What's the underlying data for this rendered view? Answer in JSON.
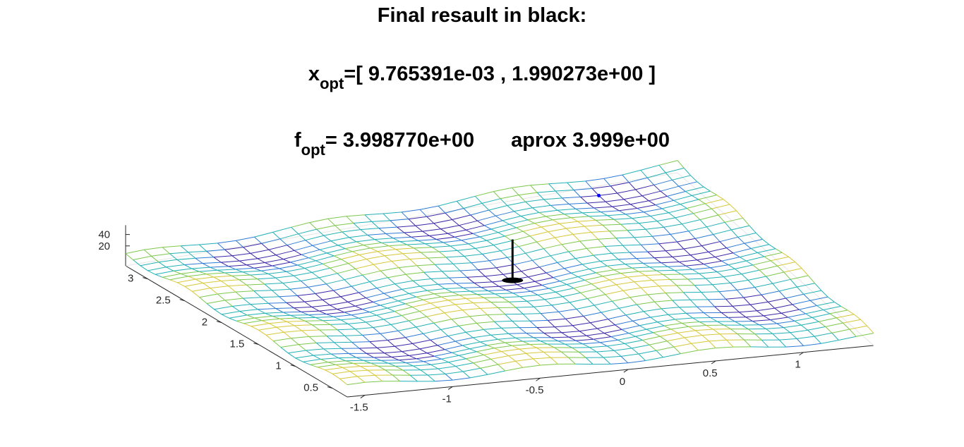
{
  "title": {
    "line1": "Final resault in black:",
    "line2_prefix": "x",
    "line2_sub": "opt",
    "line2_value": "=[ 9.765391e-03 , 1.990273e+00 ]",
    "line3_prefix": "f",
    "line3_sub": "opt",
    "line3_value": "= 3.998770e+00",
    "line3_approx": "aprox 3.999e+00"
  },
  "chart_data": {
    "type": "surface",
    "function": "oscillating surface, minimum near x=0, y=2",
    "x_ticks": [
      "-1.5",
      "-1",
      "-0.5",
      "0",
      "0.5",
      "1"
    ],
    "y_ticks": [
      "0.5",
      "1",
      "1.5",
      "2",
      "2.5",
      "3"
    ],
    "z_ticks": [
      "20",
      "40"
    ],
    "xlim": [
      -1.6,
      1.4
    ],
    "ylim": [
      0.3,
      3.3
    ],
    "zlim": [
      0,
      40
    ],
    "optimum": {
      "x": 0.009765391,
      "y": 1.990273,
      "f": 3.99877
    },
    "blue_point": {
      "x": 0.9,
      "y": 3.1
    },
    "colormap": [
      "#3e26a8",
      "#2f7bd6",
      "#23b1b6",
      "#7ec84d",
      "#d7c83a"
    ]
  }
}
